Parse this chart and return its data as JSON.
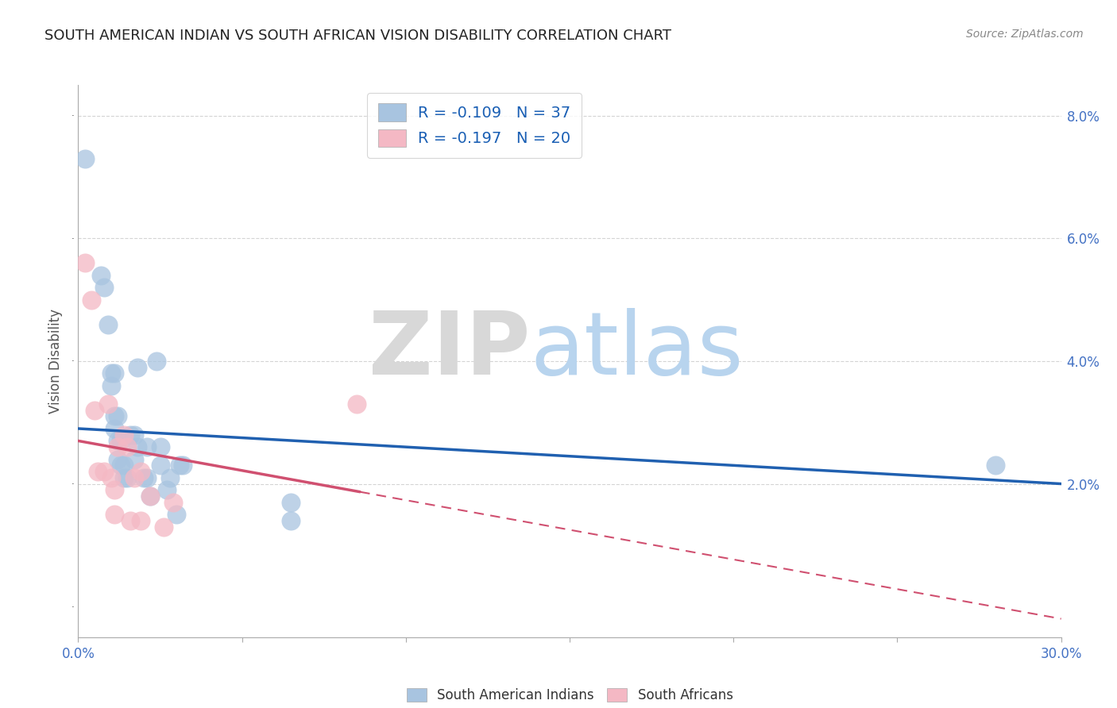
{
  "title": "SOUTH AMERICAN INDIAN VS SOUTH AFRICAN VISION DISABILITY CORRELATION CHART",
  "source": "Source: ZipAtlas.com",
  "xlabel": "",
  "ylabel": "Vision Disability",
  "xlim": [
    0.0,
    0.3
  ],
  "ylim": [
    -0.005,
    0.085
  ],
  "xtick_positions": [
    0.0,
    0.05,
    0.1,
    0.15,
    0.2,
    0.25,
    0.3
  ],
  "xtick_labels": [
    "0.0%",
    "",
    "",
    "",
    "",
    "",
    "30.0%"
  ],
  "yticks": [
    0.0,
    0.02,
    0.04,
    0.06,
    0.08
  ],
  "ytick_labels": [
    "",
    "2.0%",
    "4.0%",
    "6.0%",
    "8.0%"
  ],
  "blue_R": "-0.109",
  "blue_N": "37",
  "pink_R": "-0.197",
  "pink_N": "20",
  "blue_color": "#a8c4e0",
  "pink_color": "#f4b8c4",
  "blue_line_color": "#2060b0",
  "pink_line_color": "#d05070",
  "blue_scatter": [
    [
      0.002,
      0.073
    ],
    [
      0.007,
      0.054
    ],
    [
      0.008,
      0.052
    ],
    [
      0.009,
      0.046
    ],
    [
      0.01,
      0.038
    ],
    [
      0.01,
      0.036
    ],
    [
      0.011,
      0.038
    ],
    [
      0.011,
      0.031
    ],
    [
      0.011,
      0.029
    ],
    [
      0.012,
      0.031
    ],
    [
      0.012,
      0.027
    ],
    [
      0.012,
      0.024
    ],
    [
      0.013,
      0.027
    ],
    [
      0.013,
      0.023
    ],
    [
      0.014,
      0.023
    ],
    [
      0.014,
      0.021
    ],
    [
      0.015,
      0.021
    ],
    [
      0.016,
      0.028
    ],
    [
      0.017,
      0.028
    ],
    [
      0.017,
      0.024
    ],
    [
      0.018,
      0.039
    ],
    [
      0.018,
      0.026
    ],
    [
      0.02,
      0.021
    ],
    [
      0.021,
      0.026
    ],
    [
      0.021,
      0.021
    ],
    [
      0.022,
      0.018
    ],
    [
      0.024,
      0.04
    ],
    [
      0.025,
      0.026
    ],
    [
      0.025,
      0.023
    ],
    [
      0.027,
      0.019
    ],
    [
      0.028,
      0.021
    ],
    [
      0.03,
      0.015
    ],
    [
      0.031,
      0.023
    ],
    [
      0.032,
      0.023
    ],
    [
      0.065,
      0.017
    ],
    [
      0.065,
      0.014
    ],
    [
      0.28,
      0.023
    ]
  ],
  "pink_scatter": [
    [
      0.002,
      0.056
    ],
    [
      0.004,
      0.05
    ],
    [
      0.005,
      0.032
    ],
    [
      0.006,
      0.022
    ],
    [
      0.008,
      0.022
    ],
    [
      0.009,
      0.033
    ],
    [
      0.01,
      0.021
    ],
    [
      0.011,
      0.019
    ],
    [
      0.011,
      0.015
    ],
    [
      0.012,
      0.026
    ],
    [
      0.014,
      0.028
    ],
    [
      0.015,
      0.026
    ],
    [
      0.016,
      0.014
    ],
    [
      0.017,
      0.021
    ],
    [
      0.019,
      0.022
    ],
    [
      0.019,
      0.014
    ],
    [
      0.022,
      0.018
    ],
    [
      0.026,
      0.013
    ],
    [
      0.029,
      0.017
    ],
    [
      0.085,
      0.033
    ]
  ],
  "blue_trend_x": [
    0.0,
    0.3
  ],
  "blue_trend_y": [
    0.029,
    0.02
  ],
  "pink_trend_x": [
    0.0,
    0.3
  ],
  "pink_trend_y": [
    0.027,
    -0.002
  ],
  "watermark_zip": "ZIP",
  "watermark_atlas": "atlas",
  "background_color": "#ffffff",
  "grid_color": "#d0d0d0"
}
